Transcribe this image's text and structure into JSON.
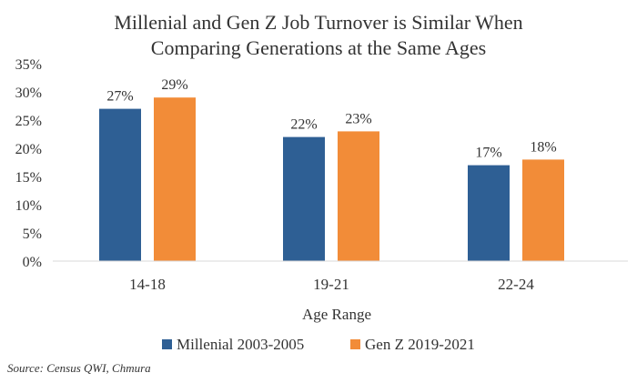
{
  "chart_data": {
    "type": "bar",
    "title_lines": [
      "Millenial and Gen Z Job Turnover is Similar When",
      "Comparing Generations at the Same Ages"
    ],
    "categories": [
      "14-18",
      "19-21",
      "22-24"
    ],
    "series": [
      {
        "name": "Millenial 2003-2005",
        "values": [
          27,
          22,
          17
        ],
        "color": "#2e5f94"
      },
      {
        "name": "Gen Z 2019-2021",
        "values": [
          29,
          23,
          18
        ],
        "color": "#f28c38"
      }
    ],
    "data_labels": [
      [
        "27%",
        "22%",
        "17%"
      ],
      [
        "29%",
        "23%",
        "18%"
      ]
    ],
    "xlabel": "Age Range",
    "ylabel": "",
    "ylim": [
      0,
      35
    ],
    "yticks": [
      0,
      5,
      10,
      15,
      20,
      25,
      30,
      35
    ],
    "ytick_labels": [
      "0%",
      "5%",
      "10%",
      "15%",
      "20%",
      "25%",
      "30%",
      "35%"
    ],
    "grid": false,
    "legend_position": "bottom",
    "source": "Source: Census QWI, Chmura"
  }
}
